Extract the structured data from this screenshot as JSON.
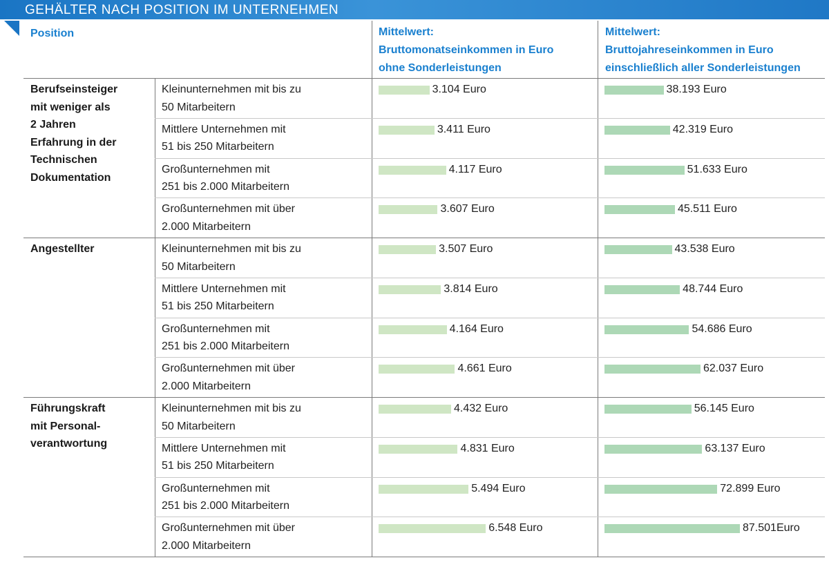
{
  "title": "GEHÄLTER NACH POSITION IM UNTERNEHMEN",
  "headers": {
    "position": "Position",
    "monthly": [
      "Mittelwert:",
      "Bruttomonatseinkommen in Euro",
      "ohne Sonderleistungen"
    ],
    "yearly": [
      "Mittelwert:",
      "Bruttojahreseinkommen in Euro",
      "einschließlich aller Sonderleistungen"
    ]
  },
  "groups": [
    {
      "label": [
        "Berufseinsteiger",
        "mit weniger als",
        "2 Jahren",
        "Erfahrung in der",
        "Technischen",
        "Dokumentation"
      ]
    },
    {
      "label": [
        "Angestellter"
      ]
    },
    {
      "label": [
        "Führungskraft",
        "mit Personal-",
        "verantwortung"
      ]
    }
  ],
  "sizes": [
    [
      "Kleinunternehmen mit bis zu",
      "50 Mitarbeitern"
    ],
    [
      "Mittlere Unternehmen mit",
      "51 bis 250 Mitarbeitern"
    ],
    [
      "Großunternehmen mit",
      "251 bis 2.000 Mitarbeitern"
    ],
    [
      "Großunternehmen mit über",
      "2.000 Mitarbeitern"
    ]
  ],
  "chart_data": {
    "type": "bar",
    "title": "GEHÄLTER NACH POSITION IM UNTERNEHMEN",
    "series": [
      {
        "name": "Mittelwert: Bruttomonatseinkommen in Euro ohne Sonderleistungen",
        "values": [
          3104,
          3411,
          4117,
          3607,
          3507,
          3814,
          4164,
          4661,
          4432,
          4831,
          5494,
          6548
        ],
        "labels": [
          "3.104 Euro",
          "3.411 Euro",
          "4.117 Euro",
          "3.607 Euro",
          "3.507 Euro",
          "3.814 Euro",
          "4.164 Euro",
          "4.661 Euro",
          "4.432 Euro",
          "4.831 Euro",
          "5.494 Euro",
          "6.548 Euro"
        ],
        "color": "#cfe6c4"
      },
      {
        "name": "Mittelwert: Bruttojahreseinkommen in Euro einschließlich aller Sonderleistungen",
        "values": [
          38193,
          42319,
          51633,
          45511,
          43538,
          48744,
          54686,
          62037,
          56145,
          63137,
          72899,
          87501
        ],
        "labels": [
          "38.193 Euro",
          "42.319 Euro",
          "51.633 Euro",
          "45.511 Euro",
          "43.538 Euro",
          "48.744 Euro",
          "54.686 Euro",
          "62.037 Euro",
          "56.145 Euro",
          "63.137 Euro",
          "72.899 Euro",
          "87.501Euro"
        ],
        "color": "#add8b6"
      }
    ]
  }
}
